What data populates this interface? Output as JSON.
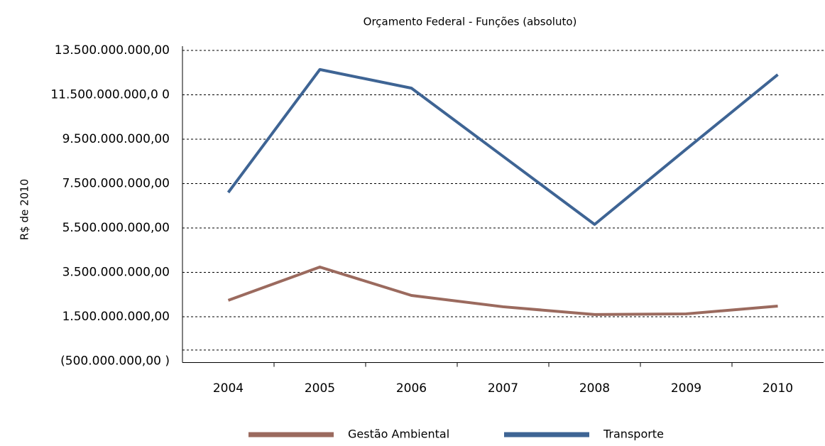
{
  "chart_data": {
    "type": "line",
    "title": "Orçamento Federal - Funções (absoluto)",
    "y_label": "R$ de 2010",
    "categories": [
      "2004",
      "2005",
      "2006",
      "2007",
      "2008",
      "2009",
      "2010"
    ],
    "series": [
      {
        "name": "Gestão Ambiental",
        "color": "#9b6a5e",
        "values": [
          2240000000,
          3740000000,
          2460000000,
          1950000000,
          1600000000,
          1630000000,
          1980000000
        ]
      },
      {
        "name": "Transporte",
        "color": "#3e6494",
        "values": [
          7100000000,
          12640000000,
          11800000000,
          8730000000,
          5660000000,
          9050000000,
          12410000000
        ]
      }
    ],
    "ylim": [
      -500000000,
      13500000000
    ],
    "yticks": [
      {
        "value": 13500000000,
        "label": "13.500.000.000,00"
      },
      {
        "value": 11500000000,
        "label": "11.500.000.000,0 0"
      },
      {
        "value": 9500000000,
        "label": "9.500.000.000,00"
      },
      {
        "value": 7500000000,
        "label": "7.500.000.000,00"
      },
      {
        "value": 5500000000,
        "label": "5.500.000.000,00"
      },
      {
        "value": 3500000000,
        "label": "3.500.000.000,00"
      },
      {
        "value": 1500000000,
        "label": "1.500.000.000,00"
      },
      {
        "value": -500000000,
        "label": "(500.000.000,00 )"
      }
    ],
    "grid": true
  }
}
